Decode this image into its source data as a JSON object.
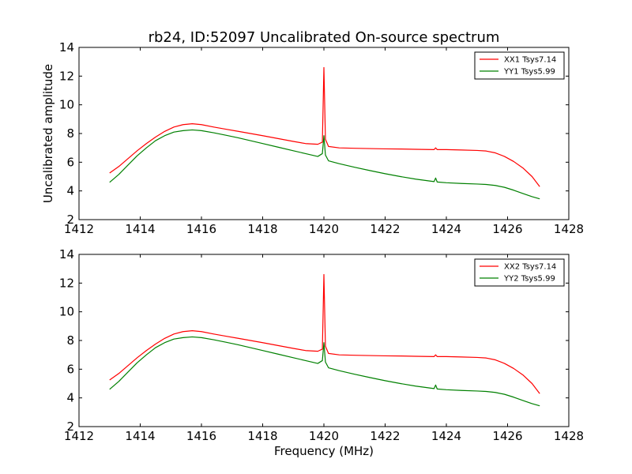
{
  "chart_data": [
    {
      "type": "line",
      "title": "rb24, ID:52097 Uncalibrated On-source spectrum",
      "xlabel": "",
      "ylabel": "Uncalibrated amplitude",
      "xlim": [
        1412,
        1428
      ],
      "ylim": [
        2,
        14
      ],
      "xticks": [
        "1412",
        "1414",
        "1416",
        "1418",
        "1420",
        "1422",
        "1424",
        "1426",
        "1428"
      ],
      "yticks": [
        "2",
        "4",
        "6",
        "8",
        "10",
        "12",
        "14"
      ],
      "grid": false,
      "legend_position": "upper right",
      "series": [
        {
          "name": "XX1 Tsys7.14",
          "color": "#ff0000",
          "points": [
            [
              1413.0,
              5.25
            ],
            [
              1413.3,
              5.7
            ],
            [
              1413.6,
              6.25
            ],
            [
              1413.9,
              6.8
            ],
            [
              1414.2,
              7.3
            ],
            [
              1414.5,
              7.75
            ],
            [
              1414.8,
              8.15
            ],
            [
              1415.1,
              8.45
            ],
            [
              1415.4,
              8.62
            ],
            [
              1415.7,
              8.68
            ],
            [
              1416.0,
              8.62
            ],
            [
              1416.4,
              8.45
            ],
            [
              1416.8,
              8.3
            ],
            [
              1417.2,
              8.15
            ],
            [
              1417.6,
              8.0
            ],
            [
              1418.0,
              7.85
            ],
            [
              1418.5,
              7.65
            ],
            [
              1419.0,
              7.45
            ],
            [
              1419.4,
              7.3
            ],
            [
              1419.8,
              7.25
            ],
            [
              1419.95,
              7.4
            ],
            [
              1420.0,
              12.6
            ],
            [
              1420.05,
              7.6
            ],
            [
              1420.15,
              7.1
            ],
            [
              1420.5,
              7.0
            ],
            [
              1421.0,
              6.97
            ],
            [
              1421.5,
              6.95
            ],
            [
              1422.0,
              6.93
            ],
            [
              1422.5,
              6.92
            ],
            [
              1423.0,
              6.9
            ],
            [
              1423.6,
              6.88
            ],
            [
              1423.65,
              7.0
            ],
            [
              1423.7,
              6.88
            ],
            [
              1424.0,
              6.88
            ],
            [
              1424.5,
              6.85
            ],
            [
              1425.0,
              6.82
            ],
            [
              1425.3,
              6.78
            ],
            [
              1425.6,
              6.65
            ],
            [
              1425.9,
              6.4
            ],
            [
              1426.2,
              6.05
            ],
            [
              1426.5,
              5.6
            ],
            [
              1426.8,
              5.0
            ],
            [
              1427.05,
              4.3
            ]
          ]
        },
        {
          "name": "YY1 Tsys5.99",
          "color": "#008000",
          "points": [
            [
              1413.0,
              4.6
            ],
            [
              1413.3,
              5.15
            ],
            [
              1413.6,
              5.8
            ],
            [
              1413.9,
              6.45
            ],
            [
              1414.2,
              7.0
            ],
            [
              1414.5,
              7.5
            ],
            [
              1414.8,
              7.85
            ],
            [
              1415.1,
              8.1
            ],
            [
              1415.4,
              8.2
            ],
            [
              1415.7,
              8.25
            ],
            [
              1416.0,
              8.2
            ],
            [
              1416.4,
              8.05
            ],
            [
              1416.8,
              7.88
            ],
            [
              1417.2,
              7.7
            ],
            [
              1417.6,
              7.5
            ],
            [
              1418.0,
              7.3
            ],
            [
              1418.5,
              7.05
            ],
            [
              1419.0,
              6.8
            ],
            [
              1419.4,
              6.6
            ],
            [
              1419.8,
              6.4
            ],
            [
              1419.95,
              6.6
            ],
            [
              1420.0,
              7.85
            ],
            [
              1420.05,
              6.5
            ],
            [
              1420.15,
              6.1
            ],
            [
              1420.5,
              5.9
            ],
            [
              1421.0,
              5.65
            ],
            [
              1421.5,
              5.42
            ],
            [
              1422.0,
              5.2
            ],
            [
              1422.5,
              5.0
            ],
            [
              1423.0,
              4.82
            ],
            [
              1423.6,
              4.65
            ],
            [
              1423.65,
              4.9
            ],
            [
              1423.7,
              4.62
            ],
            [
              1424.0,
              4.57
            ],
            [
              1424.5,
              4.52
            ],
            [
              1425.0,
              4.48
            ],
            [
              1425.3,
              4.45
            ],
            [
              1425.6,
              4.38
            ],
            [
              1425.9,
              4.25
            ],
            [
              1426.2,
              4.05
            ],
            [
              1426.5,
              3.82
            ],
            [
              1426.8,
              3.6
            ],
            [
              1427.05,
              3.45
            ]
          ]
        }
      ]
    },
    {
      "type": "line",
      "title": "",
      "xlabel": "Frequency (MHz)",
      "ylabel": "",
      "xlim": [
        1412,
        1428
      ],
      "ylim": [
        2,
        14
      ],
      "xticks": [
        "1412",
        "1414",
        "1416",
        "1418",
        "1420",
        "1422",
        "1424",
        "1426",
        "1428"
      ],
      "yticks": [
        "2",
        "4",
        "6",
        "8",
        "10",
        "12",
        "14"
      ],
      "grid": false,
      "legend_position": "upper right",
      "series": [
        {
          "name": "XX2 Tsys7.14",
          "color": "#ff0000",
          "points": [
            [
              1413.0,
              5.25
            ],
            [
              1413.3,
              5.7
            ],
            [
              1413.6,
              6.25
            ],
            [
              1413.9,
              6.8
            ],
            [
              1414.2,
              7.3
            ],
            [
              1414.5,
              7.75
            ],
            [
              1414.8,
              8.15
            ],
            [
              1415.1,
              8.45
            ],
            [
              1415.4,
              8.62
            ],
            [
              1415.7,
              8.68
            ],
            [
              1416.0,
              8.62
            ],
            [
              1416.4,
              8.45
            ],
            [
              1416.8,
              8.3
            ],
            [
              1417.2,
              8.15
            ],
            [
              1417.6,
              8.0
            ],
            [
              1418.0,
              7.85
            ],
            [
              1418.5,
              7.65
            ],
            [
              1419.0,
              7.45
            ],
            [
              1419.4,
              7.3
            ],
            [
              1419.8,
              7.25
            ],
            [
              1419.95,
              7.4
            ],
            [
              1420.0,
              12.6
            ],
            [
              1420.05,
              7.6
            ],
            [
              1420.15,
              7.1
            ],
            [
              1420.5,
              7.0
            ],
            [
              1421.0,
              6.97
            ],
            [
              1421.5,
              6.95
            ],
            [
              1422.0,
              6.93
            ],
            [
              1422.5,
              6.92
            ],
            [
              1423.0,
              6.9
            ],
            [
              1423.6,
              6.88
            ],
            [
              1423.65,
              7.0
            ],
            [
              1423.7,
              6.88
            ],
            [
              1424.0,
              6.88
            ],
            [
              1424.5,
              6.85
            ],
            [
              1425.0,
              6.82
            ],
            [
              1425.3,
              6.78
            ],
            [
              1425.6,
              6.65
            ],
            [
              1425.9,
              6.4
            ],
            [
              1426.2,
              6.05
            ],
            [
              1426.5,
              5.6
            ],
            [
              1426.8,
              5.0
            ],
            [
              1427.05,
              4.3
            ]
          ]
        },
        {
          "name": "YY2 Tsys5.99",
          "color": "#008000",
          "points": [
            [
              1413.0,
              4.6
            ],
            [
              1413.3,
              5.15
            ],
            [
              1413.6,
              5.8
            ],
            [
              1413.9,
              6.45
            ],
            [
              1414.2,
              7.0
            ],
            [
              1414.5,
              7.5
            ],
            [
              1414.8,
              7.85
            ],
            [
              1415.1,
              8.1
            ],
            [
              1415.4,
              8.2
            ],
            [
              1415.7,
              8.25
            ],
            [
              1416.0,
              8.2
            ],
            [
              1416.4,
              8.05
            ],
            [
              1416.8,
              7.88
            ],
            [
              1417.2,
              7.7
            ],
            [
              1417.6,
              7.5
            ],
            [
              1418.0,
              7.3
            ],
            [
              1418.5,
              7.05
            ],
            [
              1419.0,
              6.8
            ],
            [
              1419.4,
              6.6
            ],
            [
              1419.8,
              6.4
            ],
            [
              1419.95,
              6.6
            ],
            [
              1420.0,
              7.85
            ],
            [
              1420.05,
              6.5
            ],
            [
              1420.15,
              6.1
            ],
            [
              1420.5,
              5.9
            ],
            [
              1421.0,
              5.65
            ],
            [
              1421.5,
              5.42
            ],
            [
              1422.0,
              5.2
            ],
            [
              1422.5,
              5.0
            ],
            [
              1423.0,
              4.82
            ],
            [
              1423.6,
              4.65
            ],
            [
              1423.65,
              4.9
            ],
            [
              1423.7,
              4.62
            ],
            [
              1424.0,
              4.57
            ],
            [
              1424.5,
              4.52
            ],
            [
              1425.0,
              4.48
            ],
            [
              1425.3,
              4.45
            ],
            [
              1425.6,
              4.38
            ],
            [
              1425.9,
              4.25
            ],
            [
              1426.2,
              4.05
            ],
            [
              1426.5,
              3.82
            ],
            [
              1426.8,
              3.6
            ],
            [
              1427.05,
              3.45
            ]
          ]
        }
      ]
    }
  ]
}
